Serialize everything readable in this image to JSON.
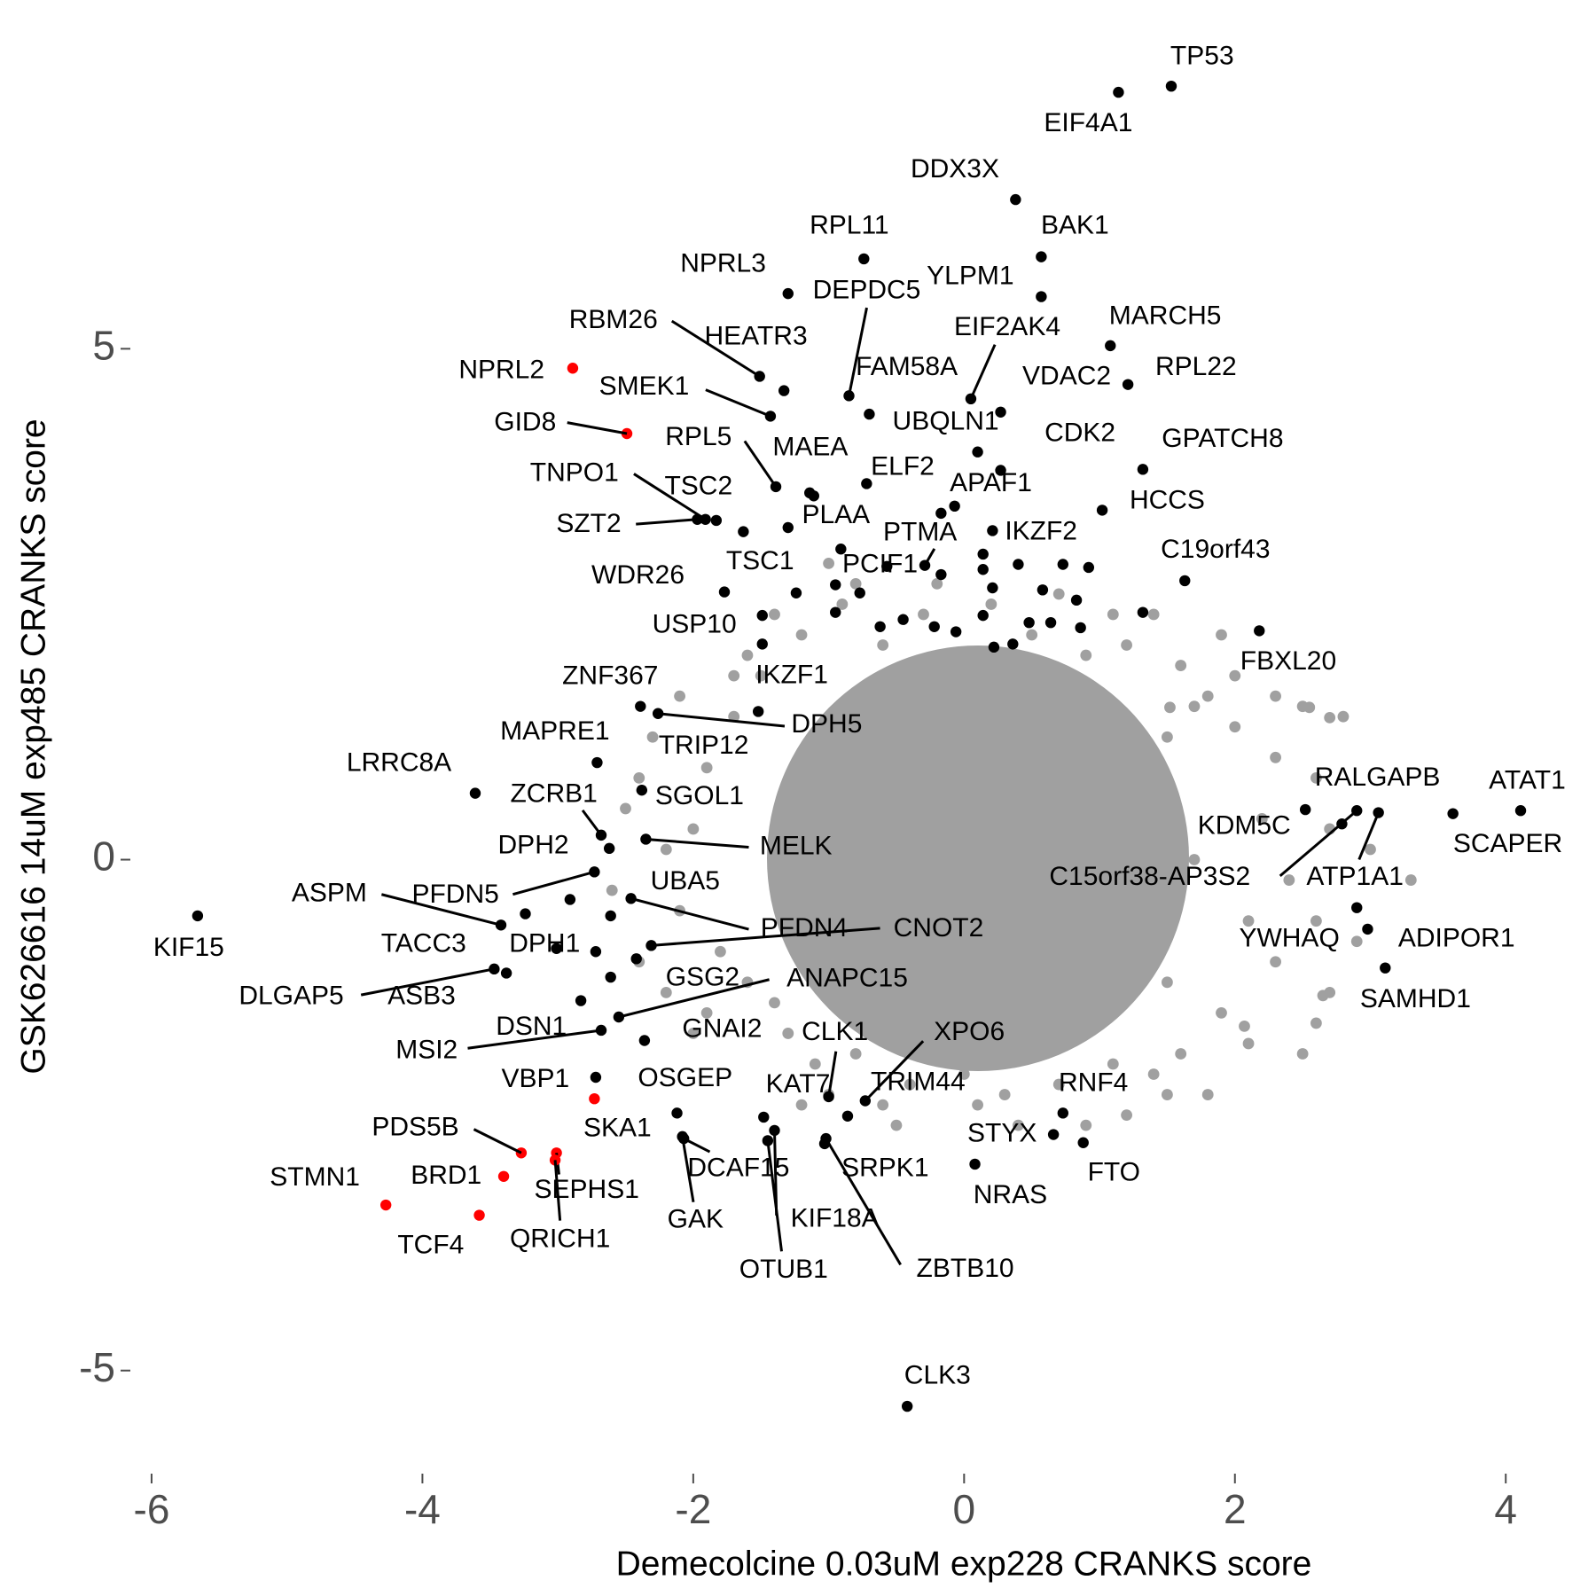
{
  "chart_data": {
    "type": "scatter",
    "x_label": "Demecolcine 0.03uM exp228 CRANKS score",
    "y_label": "GSK626616 14uM exp485 CRANKS score",
    "xlim": [
      -6.17,
      4.47
    ],
    "ylim": [
      -5.74,
      7.91
    ],
    "xticks": [
      -6,
      -4,
      -2,
      0,
      2,
      4
    ],
    "yticks": [
      -5,
      0,
      5
    ],
    "grid": false,
    "series": [
      {
        "color": "#a0a0a0",
        "x": [
          -2.0,
          -2.1,
          -1.9,
          -1.7,
          -1.6,
          -1.8,
          -2.2,
          -1.5,
          -1.2,
          -0.9,
          -0.6,
          -0.3,
          0.2,
          0.5,
          0.9,
          1.2,
          1.6,
          1.7,
          2.0,
          2.3,
          2.5,
          2.6,
          2.2,
          2.4,
          2.1,
          2.3,
          2.7,
          1.9,
          1.6,
          1.4,
          1.1,
          0.7,
          0.3,
          0.0,
          -0.4,
          -0.8,
          -1.1,
          -1.3,
          -1.4,
          -2.4,
          -2.3,
          -2.5,
          -1.0,
          -1.7,
          1.9,
          2.8,
          3.0,
          2.7,
          -0.5,
          1.5,
          0.9,
          -1.2,
          -2.1,
          -1.4,
          2.5,
          -0.2,
          0.7,
          1.1,
          -2.6,
          1.8,
          2.9,
          2.0,
          -1.9,
          -2.2,
          0.4,
          -0.8,
          1.4,
          2.6,
          3.3,
          2.3,
          -1.6,
          -2.4,
          -2.0,
          0.1,
          1.2,
          2.1,
          2.6,
          -0.6,
          -1.0,
          1.8,
          2.65,
          2.07,
          1.52,
          2.55,
          2.7,
          -1.2,
          -1.2,
          1.5,
          1.5,
          0.0,
          0.0,
          -1.3,
          1.7,
          0.8,
          -0.7,
          0.9,
          -0.7
        ],
        "y": [
          0.3,
          -0.5,
          0.9,
          1.4,
          -1.2,
          -0.9,
          0.1,
          1.8,
          2.2,
          2.5,
          2.1,
          2.4,
          2.5,
          2.2,
          2.0,
          2.1,
          1.9,
          1.5,
          1.3,
          1.0,
          1.5,
          0.8,
          0.4,
          -0.2,
          -0.6,
          -1.0,
          -1.3,
          -1.5,
          -1.9,
          -2.1,
          -2.0,
          -2.2,
          -2.3,
          -2.1,
          -2.2,
          -1.9,
          -2.0,
          -1.7,
          -1.4,
          -1.0,
          1.2,
          0.5,
          2.9,
          1.8,
          2.2,
          1.4,
          0.1,
          0.3,
          -2.6,
          -2.3,
          -2.6,
          -2.4,
          1.6,
          2.4,
          -1.9,
          2.7,
          2.6,
          2.4,
          -0.3,
          -2.3,
          -0.8,
          1.8,
          -1.5,
          -1.3,
          -2.6,
          2.7,
          2.4,
          -0.6,
          -0.2,
          1.6,
          2.0,
          0.8,
          -1.7,
          -2.4,
          -2.5,
          -1.8,
          -1.6,
          -2.4,
          -2.3,
          1.6,
          -1.33,
          -1.63,
          1.49,
          1.49,
          1.39,
          1.0,
          -0.8,
          1.2,
          -1.2,
          1.8,
          -1.8,
          0.2,
          0.0,
          1.7,
          1.6,
          -1.6,
          -1.6
        ]
      },
      {
        "color": "#000000",
        "x": [
          1.53,
          1.14,
          0.38,
          0.57,
          -0.74,
          -1.3,
          0.57,
          -0.85,
          1.08,
          0.05,
          -1.51,
          -1.33,
          1.21,
          0.27,
          -0.7,
          -1.43,
          0.1,
          0.27,
          1.32,
          -1.39,
          -1.14,
          -0.72,
          -1.91,
          -1.83,
          -0.07,
          1.02,
          -1.3,
          -1.97,
          -0.17,
          0.21,
          -0.29,
          -1.63,
          1.63,
          -1.77,
          -1.49,
          2.18,
          -1.49,
          -2.39,
          -2.26,
          -2.71,
          -1.52,
          -3.61,
          -2.68,
          -2.38,
          2.52,
          4.11,
          2.79,
          3.61,
          -2.35,
          -2.62,
          2.9,
          3.06,
          -3.42,
          -2.73,
          -2.61,
          -5.66,
          -2.46,
          -2.31,
          2.9,
          2.98,
          -3.24,
          -3.01,
          -3.47,
          -3.38,
          -2.61,
          -2.55,
          3.11,
          -2.83,
          -2.36,
          -2.68,
          -1.0,
          -0.73,
          -2.72,
          -2.12,
          -1.48,
          -0.86,
          0.73,
          0.66,
          0.88,
          -2.07,
          -1.03,
          0.08,
          -2.08,
          -1.4,
          -1.45,
          -1.02,
          -0.42,
          -0.91,
          -1.24,
          -0.95,
          -0.77,
          -0.57,
          -0.17,
          0.14,
          0.14,
          0.21,
          0.4,
          0.58,
          0.73,
          0.92,
          0.83,
          0.48,
          0.64,
          0.86,
          1.32,
          0.14,
          -0.22,
          -0.06,
          0.22,
          0.36,
          -0.45,
          -0.62,
          -0.95,
          -2.42,
          -2.91,
          -2.72,
          -1.11
        ],
        "y": [
          7.57,
          7.51,
          6.46,
          5.9,
          5.88,
          5.54,
          5.51,
          4.54,
          5.03,
          4.51,
          4.73,
          4.59,
          4.65,
          4.38,
          4.36,
          4.34,
          3.99,
          3.81,
          3.82,
          3.65,
          3.59,
          3.68,
          3.33,
          3.32,
          3.46,
          3.42,
          3.25,
          3.33,
          3.39,
          3.22,
          2.88,
          3.21,
          2.73,
          2.62,
          2.39,
          2.24,
          2.11,
          1.5,
          1.43,
          0.95,
          1.45,
          0.65,
          0.24,
          0.68,
          0.49,
          0.48,
          0.35,
          0.45,
          0.2,
          0.11,
          0.48,
          0.46,
          -0.64,
          -0.12,
          -0.55,
          -0.55,
          -0.38,
          -0.84,
          -0.47,
          -0.68,
          -0.53,
          -0.87,
          -1.07,
          -1.11,
          -1.15,
          -1.54,
          -1.06,
          -1.38,
          -1.77,
          -1.67,
          -2.32,
          -2.36,
          -2.13,
          -2.48,
          -2.52,
          -2.51,
          -2.48,
          -2.69,
          -2.77,
          -2.73,
          -2.78,
          -2.98,
          -2.71,
          -2.65,
          -2.75,
          -2.73,
          -5.35,
          3.04,
          2.61,
          2.69,
          2.61,
          2.87,
          2.79,
          2.99,
          2.84,
          2.66,
          2.89,
          2.64,
          2.89,
          2.86,
          2.54,
          2.32,
          2.32,
          2.27,
          2.42,
          2.39,
          2.28,
          2.23,
          2.08,
          2.11,
          2.35,
          2.28,
          2.42,
          -0.97,
          -0.39,
          -0.9,
          3.56
        ],
        "labels": [
          "TP53",
          "EIF4A1",
          "DDX3X",
          "BAK1",
          "RPL11",
          "NPRL3",
          "YLPM1",
          "DEPDC5",
          "MARCH5",
          "EIF2AK4",
          "RBM26",
          "HEATR3",
          "RPL22",
          "VDAC2",
          "FAM58A",
          "SMEK1",
          "UBQLN1",
          "CDK2",
          "GPATCH8",
          "RPL5",
          "MAEA",
          "ELF2",
          "TNPO1",
          "TSC2",
          "APAF1",
          "HCCS",
          "PLAA",
          "SZT2",
          "PTMA",
          "IKZF2",
          "PCIF1",
          "TSC1",
          "C19orf43",
          "WDR26",
          "USP10",
          "FBXL20",
          "IKZF1",
          "ZNF367",
          "DPH5",
          "MAPRE1",
          "TRIP12",
          "LRRC8A",
          "ZCRB1",
          "SGOL1",
          "RALGAPB",
          "ATAT1",
          "KDM5C",
          "SCAPER",
          "MELK",
          "DPH2",
          "C15orf38-AP3S2",
          "ATP1A1",
          "ASPM",
          "PFDN5",
          "UBA5",
          "KIF15",
          "PFDN4",
          "CNOT2",
          "YWHAQ",
          "ADIPOR1",
          "TACC3",
          "DPH1",
          "DLGAP5",
          "ASB3",
          "GSG2",
          "ANAPC15",
          "SAMHD1",
          "DSN1",
          "GNAI2",
          "MSI2",
          "CLK1",
          "XPO6",
          "VBP1",
          "OSGEP",
          "KAT7",
          "TRIM44",
          "RNF4",
          "STYX",
          "FTO",
          "DCAF15",
          "SRPK1",
          "NRAS",
          "GAK",
          "KIF18A",
          "OTUB1",
          "ZBTB10",
          "CLK3",
          null,
          null,
          null,
          null,
          null,
          null,
          null,
          null,
          null,
          null,
          null,
          null,
          null,
          null,
          null,
          null,
          null,
          null,
          null,
          null,
          null,
          null,
          null,
          null,
          null,
          null,
          null,
          null,
          null,
          null
        ]
      },
      {
        "color": "#ff0000",
        "x": [
          -2.89,
          -2.49,
          -2.73,
          -3.27,
          -3.01,
          -3.02,
          -3.4,
          -4.27,
          -3.58
        ],
        "y": [
          4.81,
          4.17,
          -2.34,
          -2.87,
          -2.87,
          -2.94,
          -3.1,
          -3.38,
          -3.48
        ],
        "labels": [
          "NPRL2",
          "GID8",
          "SKA1",
          "PDS5B",
          "SEPHS1",
          "QRICH1",
          "BRD1",
          "STMN1",
          "TCF4"
        ]
      }
    ]
  }
}
